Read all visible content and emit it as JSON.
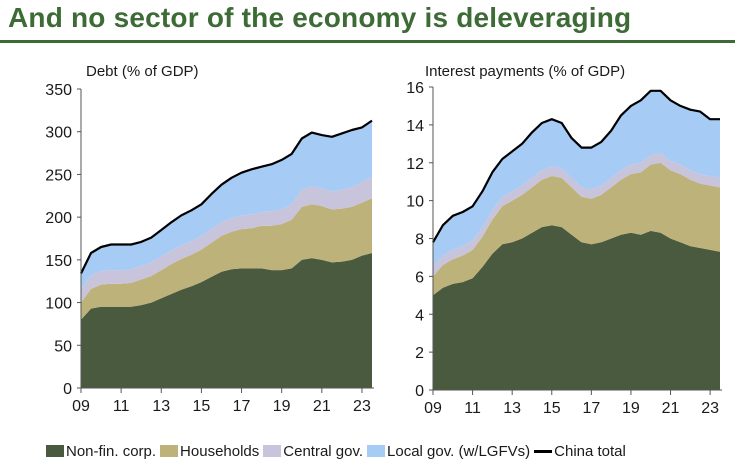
{
  "page": {
    "title": "And no sector of the economy is deleveraging",
    "accent_color": "#3d6b35"
  },
  "legend": [
    {
      "key": "nonfin",
      "label": "Non-fin. corp.",
      "color": "#4a5a3e",
      "kind": "area"
    },
    {
      "key": "house",
      "label": "Households",
      "color": "#bdb27a",
      "kind": "area"
    },
    {
      "key": "central",
      "label": "Central gov.",
      "color": "#c8c4dc",
      "kind": "area"
    },
    {
      "key": "local",
      "label": "Local gov. (w/LGFVs)",
      "color": "#a6cbf5",
      "kind": "area"
    },
    {
      "key": "total",
      "label": "China total",
      "color": "#000000",
      "kind": "line"
    }
  ],
  "chart_data": [
    {
      "type": "area",
      "stacked": true,
      "title": "Debt (% of GDP)",
      "ylim": [
        0,
        350
      ],
      "yticks": [
        0,
        50,
        100,
        150,
        200,
        250,
        300,
        350
      ],
      "xlim": [
        2009,
        2023.6
      ],
      "xticks": [
        2009,
        2011,
        2013,
        2015,
        2017,
        2019,
        2021,
        2023
      ],
      "xtick_labels": [
        "09",
        "11",
        "13",
        "15",
        "17",
        "19",
        "21",
        "23"
      ],
      "x": [
        2009,
        2009.5,
        2010,
        2010.5,
        2011,
        2011.5,
        2012,
        2012.5,
        2013,
        2013.5,
        2014,
        2014.5,
        2015,
        2015.5,
        2016,
        2016.5,
        2017,
        2017.5,
        2018,
        2018.5,
        2019,
        2019.5,
        2020,
        2020.5,
        2021,
        2021.5,
        2022,
        2022.5,
        2023,
        2023.5
      ],
      "series": [
        {
          "name": "Non-fin. corp.",
          "values": [
            80,
            93,
            95,
            95,
            95,
            95,
            97,
            100,
            105,
            110,
            115,
            119,
            124,
            130,
            136,
            139,
            140,
            140,
            140,
            138,
            138,
            140,
            150,
            152,
            150,
            147,
            148,
            150,
            155,
            158
          ]
        },
        {
          "name": "Households",
          "values": [
            20,
            23,
            26,
            27,
            27,
            28,
            30,
            31,
            33,
            35,
            36,
            37,
            38,
            40,
            42,
            44,
            46,
            47,
            50,
            52,
            54,
            57,
            62,
            63,
            63,
            62,
            62,
            62,
            62,
            64
          ]
        },
        {
          "name": "Central gov.",
          "values": [
            16,
            16,
            16,
            16,
            16,
            16,
            16,
            16,
            16,
            16,
            16,
            16,
            16,
            16,
            16,
            16,
            16,
            16,
            16,
            17,
            17,
            18,
            20,
            21,
            21,
            21,
            22,
            23,
            24,
            25
          ]
        },
        {
          "name": "Local gov. (w/LGFVs)",
          "values": [
            18,
            26,
            28,
            30,
            30,
            29,
            28,
            29,
            31,
            33,
            35,
            36,
            37,
            41,
            44,
            47,
            50,
            53,
            53,
            55,
            58,
            59,
            60,
            63,
            62,
            64,
            66,
            67,
            64,
            66
          ]
        }
      ],
      "total": {
        "name": "China total",
        "values": [
          134,
          158,
          165,
          168,
          168,
          168,
          171,
          176,
          185,
          194,
          202,
          208,
          215,
          227,
          238,
          246,
          252,
          256,
          259,
          262,
          267,
          274,
          292,
          299,
          296,
          294,
          298,
          302,
          305,
          313
        ]
      }
    },
    {
      "type": "area",
      "stacked": true,
      "title": "Interest payments (% of GDP)",
      "ylim": [
        0,
        16
      ],
      "yticks": [
        0,
        2,
        4,
        6,
        8,
        10,
        12,
        14,
        16
      ],
      "xlim": [
        2009,
        2023.6
      ],
      "xticks": [
        2009,
        2011,
        2013,
        2015,
        2017,
        2019,
        2021,
        2023
      ],
      "xtick_labels": [
        "09",
        "11",
        "13",
        "15",
        "17",
        "19",
        "21",
        "23"
      ],
      "x": [
        2009,
        2009.5,
        2010,
        2010.5,
        2011,
        2011.5,
        2012,
        2012.5,
        2013,
        2013.5,
        2014,
        2014.5,
        2015,
        2015.5,
        2016,
        2016.5,
        2017,
        2017.5,
        2018,
        2018.5,
        2019,
        2019.5,
        2020,
        2020.5,
        2021,
        2021.5,
        2022,
        2022.5,
        2023,
        2023.5
      ],
      "series": [
        {
          "name": "Non-fin. corp.",
          "values": [
            5.0,
            5.4,
            5.6,
            5.7,
            5.9,
            6.5,
            7.2,
            7.7,
            7.8,
            8.0,
            8.3,
            8.6,
            8.7,
            8.6,
            8.2,
            7.8,
            7.7,
            7.8,
            8.0,
            8.2,
            8.3,
            8.2,
            8.4,
            8.3,
            8.0,
            7.8,
            7.6,
            7.5,
            7.4,
            7.3
          ]
        },
        {
          "name": "Households",
          "values": [
            1.0,
            1.2,
            1.3,
            1.4,
            1.5,
            1.6,
            1.8,
            2.0,
            2.2,
            2.3,
            2.4,
            2.5,
            2.6,
            2.6,
            2.5,
            2.4,
            2.4,
            2.5,
            2.7,
            2.9,
            3.1,
            3.3,
            3.5,
            3.7,
            3.6,
            3.6,
            3.5,
            3.4,
            3.4,
            3.4
          ]
        },
        {
          "name": "Central gov.",
          "values": [
            0.5,
            0.5,
            0.5,
            0.5,
            0.5,
            0.5,
            0.5,
            0.5,
            0.5,
            0.5,
            0.5,
            0.5,
            0.5,
            0.5,
            0.5,
            0.5,
            0.5,
            0.5,
            0.5,
            0.5,
            0.5,
            0.5,
            0.5,
            0.5,
            0.5,
            0.5,
            0.5,
            0.5,
            0.5,
            0.5
          ]
        },
        {
          "name": "Local gov. (w/LGFVs)",
          "values": [
            1.3,
            1.6,
            1.8,
            1.8,
            1.8,
            1.9,
            2.0,
            2.0,
            2.1,
            2.2,
            2.4,
            2.5,
            2.5,
            2.4,
            2.1,
            2.1,
            2.2,
            2.3,
            2.5,
            2.9,
            3.1,
            3.3,
            3.4,
            3.3,
            3.2,
            3.1,
            3.2,
            3.3,
            3.0,
            3.1
          ]
        }
      ],
      "total": {
        "name": "China total",
        "values": [
          7.8,
          8.7,
          9.2,
          9.4,
          9.7,
          10.5,
          11.5,
          12.2,
          12.6,
          13.0,
          13.6,
          14.1,
          14.3,
          14.1,
          13.3,
          12.8,
          12.8,
          13.1,
          13.7,
          14.5,
          15.0,
          15.3,
          15.8,
          15.8,
          15.3,
          15.0,
          14.8,
          14.7,
          14.3,
          14.3
        ]
      }
    }
  ]
}
